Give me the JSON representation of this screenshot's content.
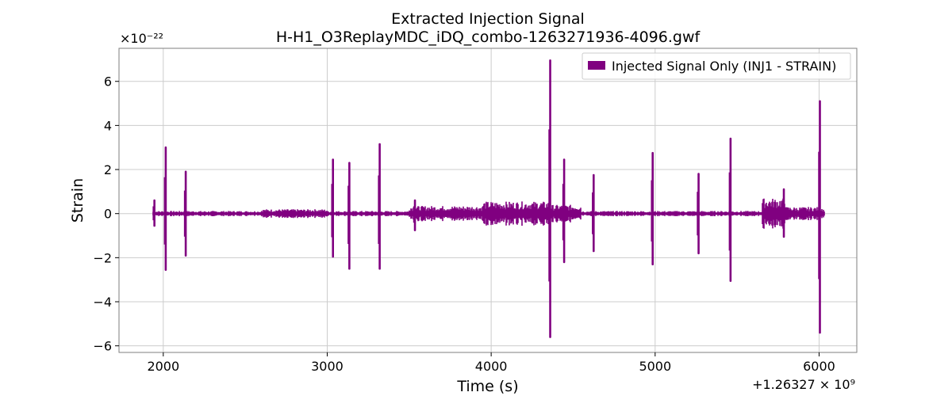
{
  "chart_data": {
    "type": "line",
    "title": "Extracted Injection Signal",
    "subtitle": "H-H1_O3ReplayMDC_iDQ_combo-1263271936-4096.gwf",
    "xlabel": "Time (s)",
    "ylabel": "Strain",
    "y_exponent_label": "×10⁻²²",
    "x_offset_label": "+1.26327 × 10⁹",
    "xlim": [
      1730,
      6230
    ],
    "ylim": [
      -6.3,
      7.5
    ],
    "x_ticks": [
      2000,
      3000,
      4000,
      5000,
      6000
    ],
    "x_tick_labels": [
      "2000",
      "3000",
      "4000",
      "5000",
      "6000"
    ],
    "y_ticks": [
      -6,
      -4,
      -2,
      0,
      2,
      4,
      6
    ],
    "y_tick_labels": [
      "−6",
      "−4",
      "−2",
      "0",
      "2",
      "4",
      "6"
    ],
    "grid": true,
    "legend_position": "top-right",
    "series": [
      {
        "name": "Injected Signal Only (INJ1 - STRAIN)",
        "color": "#800080",
        "x_start": 1936,
        "x_end": 6032,
        "baseline_amplitude": 0.12,
        "noise_bands": [
          {
            "x_start": 2600,
            "x_end": 3000,
            "amplitude": 0.2
          },
          {
            "x_start": 3500,
            "x_end": 3950,
            "amplitude": 0.35
          },
          {
            "x_start": 3950,
            "x_end": 4350,
            "amplitude": 0.55
          },
          {
            "x_start": 4350,
            "x_end": 4550,
            "amplitude": 0.4
          },
          {
            "x_start": 5650,
            "x_end": 5800,
            "amplitude": 0.7
          },
          {
            "x_start": 5800,
            "x_end": 6030,
            "amplitude": 0.3
          }
        ],
        "peaks": [
          {
            "x": 1946,
            "max": 0.6,
            "min": -0.55
          },
          {
            "x": 2015,
            "max": 3.0,
            "min": -2.55
          },
          {
            "x": 2137,
            "max": 1.9,
            "min": -1.9
          },
          {
            "x": 3035,
            "max": 2.45,
            "min": -1.95
          },
          {
            "x": 3135,
            "max": 2.3,
            "min": -2.5
          },
          {
            "x": 3320,
            "max": 3.15,
            "min": -2.5
          },
          {
            "x": 3535,
            "max": 0.6,
            "min": -0.75
          },
          {
            "x": 4360,
            "max": 6.95,
            "min": -5.6
          },
          {
            "x": 4445,
            "max": 2.45,
            "min": -2.2
          },
          {
            "x": 4625,
            "max": 1.75,
            "min": -1.7
          },
          {
            "x": 4985,
            "max": 2.75,
            "min": -2.3
          },
          {
            "x": 5265,
            "max": 1.8,
            "min": -1.8
          },
          {
            "x": 5460,
            "max": 3.4,
            "min": -3.05
          },
          {
            "x": 5785,
            "max": 1.1,
            "min": -1.05
          },
          {
            "x": 6005,
            "max": 5.1,
            "min": -5.4
          }
        ]
      }
    ]
  }
}
